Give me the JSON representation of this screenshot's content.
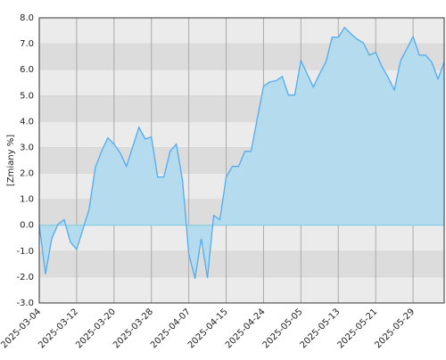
{
  "chart_data": {
    "type": "area",
    "y_label": "[Zmiany %]",
    "x": [
      "2025-03-04",
      "2025-03-05",
      "2025-03-06",
      "2025-03-07",
      "2025-03-10",
      "2025-03-11",
      "2025-03-12",
      "2025-03-13",
      "2025-03-14",
      "2025-03-17",
      "2025-03-18",
      "2025-03-19",
      "2025-03-20",
      "2025-03-21",
      "2025-03-24",
      "2025-03-25",
      "2025-03-26",
      "2025-03-27",
      "2025-03-28",
      "2025-03-31",
      "2025-04-01",
      "2025-04-02",
      "2025-04-03",
      "2025-04-04",
      "2025-04-07",
      "2025-04-08",
      "2025-04-09",
      "2025-04-10",
      "2025-04-11",
      "2025-04-14",
      "2025-04-15",
      "2025-04-16",
      "2025-04-17",
      "2025-04-18",
      "2025-04-22",
      "2025-04-23",
      "2025-04-24",
      "2025-04-25",
      "2025-04-28",
      "2025-04-29",
      "2025-04-30",
      "2025-05-02",
      "2025-05-05",
      "2025-05-06",
      "2025-05-07",
      "2025-05-08",
      "2025-05-09",
      "2025-05-12",
      "2025-05-13",
      "2025-05-14",
      "2025-05-15",
      "2025-05-16",
      "2025-05-19",
      "2025-05-20",
      "2025-05-21",
      "2025-05-22",
      "2025-05-23",
      "2025-05-26",
      "2025-05-27",
      "2025-05-28",
      "2025-05-29",
      "2025-05-30",
      "2025-06-02",
      "2025-06-03",
      "2025-06-04",
      "2025-06-05"
    ],
    "values": [
      0.0,
      -1.89,
      -0.52,
      0.03,
      0.21,
      -0.65,
      -0.93,
      -0.17,
      0.62,
      2.23,
      2.85,
      3.37,
      3.13,
      2.78,
      2.27,
      3.02,
      3.78,
      3.33,
      3.4,
      1.86,
      1.86,
      2.85,
      3.13,
      1.72,
      -1.1,
      -2.06,
      -0.52,
      -2.03,
      0.38,
      0.21,
      1.86,
      2.27,
      2.27,
      2.85,
      2.85,
      4.12,
      5.36,
      5.53,
      5.57,
      5.74,
      5.02,
      5.02,
      6.35,
      5.84,
      5.33,
      5.84,
      6.29,
      7.25,
      7.25,
      7.63,
      7.39,
      7.18,
      7.04,
      6.56,
      6.67,
      6.12,
      5.7,
      5.22,
      6.35,
      6.8,
      7.28,
      6.56,
      6.56,
      6.29,
      5.64,
      6.29
    ],
    "color": "#55aaee",
    "fill_color": "#b4dcee",
    "xticks": [
      "2025-03-04",
      "2025-03-12",
      "2025-03-20",
      "2025-03-28",
      "2025-04-07",
      "2025-04-15",
      "2025-04-24",
      "2025-05-05",
      "2025-05-13",
      "2025-05-21",
      "2025-05-29"
    ],
    "ylim": [
      -3,
      8
    ],
    "yticks": [
      {
        "value": -3,
        "label": "-3.0"
      },
      {
        "value": -2,
        "label": "-2.0"
      },
      {
        "value": -1,
        "label": "-1.0"
      },
      {
        "value": 0,
        "label": "0.0"
      },
      {
        "value": 1,
        "label": "1.0"
      },
      {
        "value": 2,
        "label": "2.0"
      },
      {
        "value": 3,
        "label": "3.0"
      },
      {
        "value": 4,
        "label": "4.0"
      },
      {
        "value": 5,
        "label": "5.0"
      },
      {
        "value": 6,
        "label": "6.0"
      },
      {
        "value": 7,
        "label": "7.0"
      },
      {
        "value": 8,
        "label": "8.0"
      }
    ],
    "grid": true
  }
}
